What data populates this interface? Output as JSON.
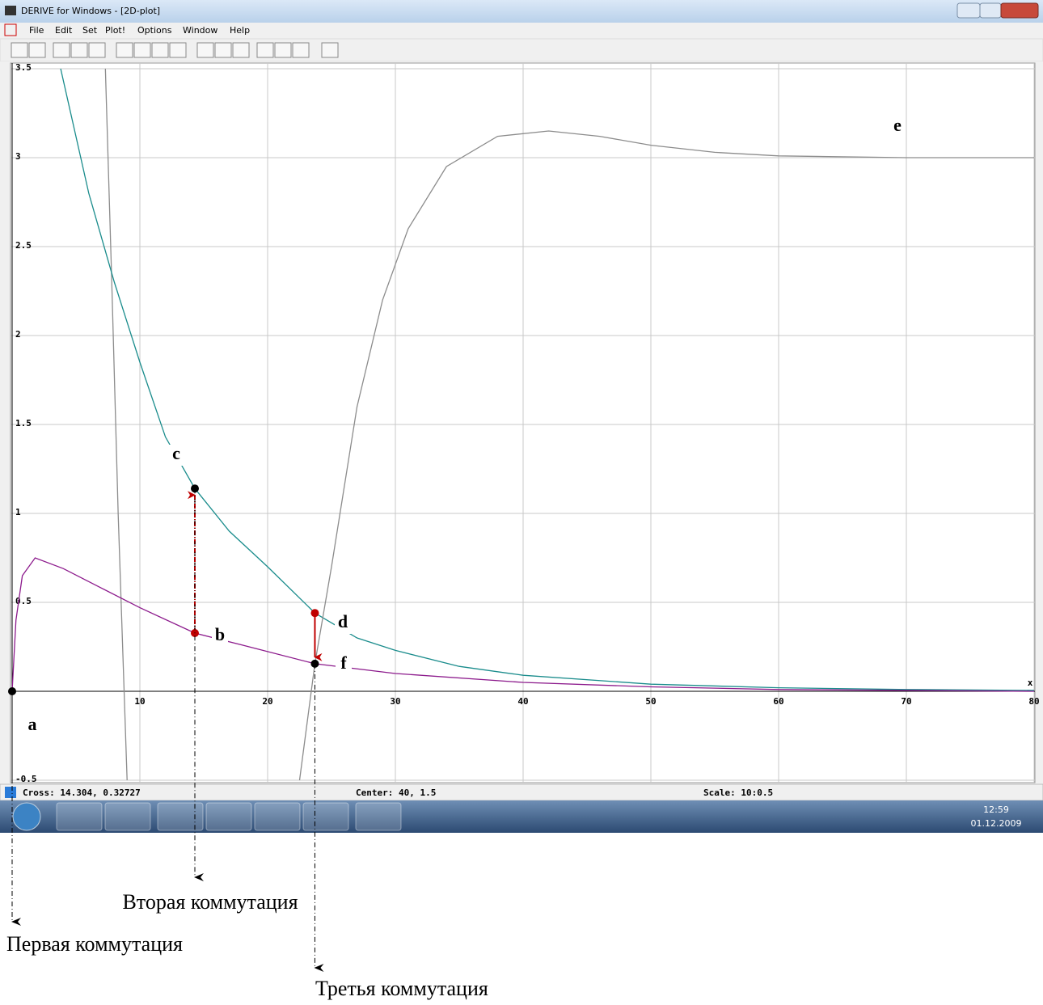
{
  "window": {
    "title": "DERIVE for Windows - [2D-plot]",
    "menu": [
      "File",
      "Edit",
      "Set",
      "Plot!",
      "Options",
      "Window",
      "Help"
    ],
    "status": {
      "cross": "Cross: 14.304, 0.32727",
      "center": "Center: 40, 1.5",
      "scale": "Scale: 10:0.5"
    },
    "clock": {
      "time": "12:59",
      "date": "01.12.2009"
    }
  },
  "chart_data": {
    "type": "line",
    "x_label": "x",
    "xlim": [
      0,
      80
    ],
    "ylim": [
      -0.5,
      3.5
    ],
    "xticks": [
      10,
      20,
      30,
      40,
      50,
      60,
      70,
      80
    ],
    "yticks": [
      -0.5,
      0.5,
      1,
      1.5,
      2,
      2.5,
      3,
      3.5
    ],
    "grid": true,
    "series": [
      {
        "color": "#8c8c8c",
        "x": [
          7.3,
          7.8,
          8.3,
          9.0
        ],
        "values": [
          3.5,
          2.3,
          1.0,
          -0.5
        ]
      },
      {
        "color": "#1a8c8c",
        "x": [
          3.8,
          6,
          8,
          10,
          12,
          14.304,
          17,
          20,
          23.7,
          27,
          30,
          35,
          40,
          50,
          60,
          70,
          80
        ],
        "values": [
          3.5,
          2.8,
          2.3,
          1.85,
          1.43,
          1.14,
          0.9,
          0.7,
          0.44,
          0.3,
          0.23,
          0.14,
          0.09,
          0.04,
          0.02,
          0.01,
          0.005
        ]
      },
      {
        "color": "#8c1a8c",
        "x": [
          0,
          0.3,
          0.8,
          1.8,
          4,
          7,
          10,
          14.304,
          18,
          23.7,
          30,
          40,
          50,
          60,
          80
        ],
        "values": [
          0,
          0.4,
          0.65,
          0.75,
          0.69,
          0.58,
          0.47,
          0.32727,
          0.26,
          0.155,
          0.1,
          0.05,
          0.025,
          0.01,
          0
        ]
      },
      {
        "color": "#8c8c8c",
        "x": [
          22.5,
          23.7,
          25,
          27,
          29,
          31,
          34,
          38,
          42,
          46,
          50,
          55,
          60,
          70,
          80
        ],
        "values": [
          -0.5,
          0.155,
          0.7,
          1.6,
          2.2,
          2.6,
          2.95,
          3.12,
          3.15,
          3.12,
          3.07,
          3.03,
          3.01,
          3.0,
          3.0
        ]
      }
    ],
    "points": [
      {
        "x": 0,
        "y": 0,
        "color": "#000000"
      },
      {
        "x": 14.304,
        "y": 1.14,
        "color": "#000000"
      },
      {
        "x": 14.304,
        "y": 0.32727,
        "color": "#c00000"
      },
      {
        "x": 23.7,
        "y": 0.44,
        "color": "#c00000"
      },
      {
        "x": 23.7,
        "y": 0.155,
        "color": "#000000"
      }
    ],
    "annotations": [
      "a",
      "b",
      "c",
      "d",
      "e",
      "f"
    ]
  },
  "captions": [
    "Вторая коммутация",
    "Первая коммутация",
    "Третья коммутация"
  ]
}
